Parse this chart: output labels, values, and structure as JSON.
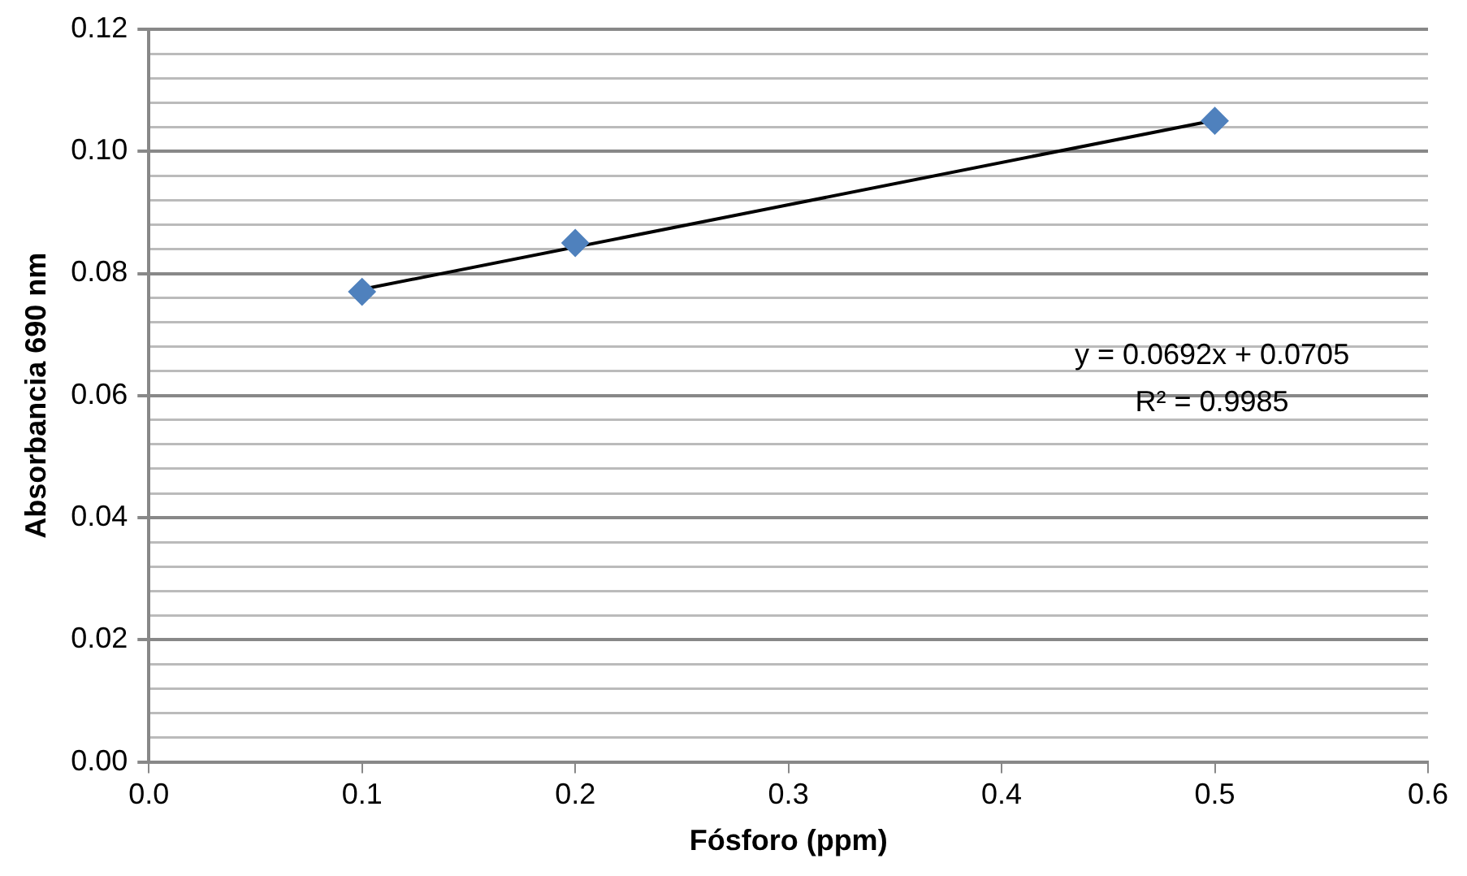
{
  "chart_data": {
    "type": "scatter",
    "xlabel": "Fósforo (ppm)",
    "ylabel": "Absorbancia 690 nm",
    "series": [
      {
        "type": "scatter",
        "x": [
          0.1,
          0.2,
          0.5
        ],
        "values": [
          0.077,
          0.085,
          0.105
        ],
        "color": "#4f81bd",
        "marker": "diamond"
      },
      {
        "type": "line",
        "x": [
          0.1,
          0.5
        ],
        "values": [
          0.0774,
          0.1051
        ],
        "color": "#000000",
        "marker": "none",
        "line_style": "solid"
      }
    ],
    "xlim": [
      0,
      0.6
    ],
    "xticks": [
      {
        "value": 0,
        "label": "0.0"
      },
      {
        "value": 0.1,
        "label": "0.1"
      },
      {
        "value": 0.2,
        "label": "0.2"
      },
      {
        "value": 0.3,
        "label": "0.3"
      },
      {
        "value": 0.4,
        "label": "0.4"
      },
      {
        "value": 0.5,
        "label": "0.5"
      },
      {
        "value": 0.6,
        "label": "0.6"
      }
    ],
    "ylim": [
      0,
      0.12
    ],
    "yticks": [
      {
        "value": 0,
        "label": "0.00"
      },
      {
        "value": 0.004,
        "label": null
      },
      {
        "value": 0.008,
        "label": null
      },
      {
        "value": 0.012,
        "label": null
      },
      {
        "value": 0.016,
        "label": null
      },
      {
        "value": 0.02,
        "label": "0.02"
      },
      {
        "value": 0.024,
        "label": null
      },
      {
        "value": 0.028,
        "label": null
      },
      {
        "value": 0.032,
        "label": null
      },
      {
        "value": 0.036,
        "label": null
      },
      {
        "value": 0.04,
        "label": "0.04"
      },
      {
        "value": 0.044,
        "label": null
      },
      {
        "value": 0.048,
        "label": null
      },
      {
        "value": 0.052,
        "label": null
      },
      {
        "value": 0.056,
        "label": null
      },
      {
        "value": 0.06,
        "label": "0.06"
      },
      {
        "value": 0.064,
        "label": null
      },
      {
        "value": 0.068,
        "label": null
      },
      {
        "value": 0.072,
        "label": null
      },
      {
        "value": 0.076,
        "label": null
      },
      {
        "value": 0.08,
        "label": "0.08"
      },
      {
        "value": 0.084,
        "label": null
      },
      {
        "value": 0.088,
        "label": null
      },
      {
        "value": 0.092,
        "label": null
      },
      {
        "value": 0.096,
        "label": null
      },
      {
        "value": 0.1,
        "label": "0.10"
      },
      {
        "value": 0.104,
        "label": null
      },
      {
        "value": 0.108,
        "label": null
      },
      {
        "value": 0.112,
        "label": null
      },
      {
        "value": 0.116,
        "label": null
      },
      {
        "value": 0.12,
        "label": "0.12"
      }
    ],
    "grid": "y",
    "legend": false,
    "annotations": [
      "y = 0.0692x + 0.0705",
      "R² = 0.9985"
    ]
  }
}
